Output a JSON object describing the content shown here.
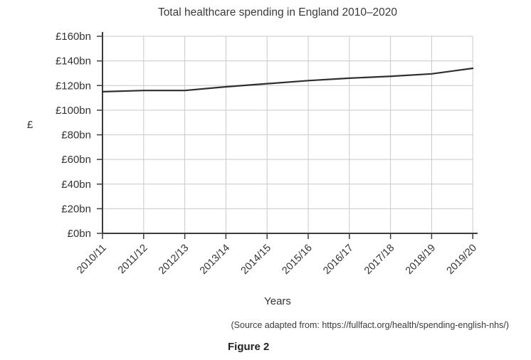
{
  "figure": {
    "title": "Total healthcare spending in England 2010–2020",
    "xlabel": "Years",
    "ylabel": "£",
    "source": "(Source adapted from: https://fullfact.org/health/spending-english-nhs/)",
    "caption": "Figure 2"
  },
  "chart_data": {
    "type": "line",
    "title": "Total healthcare spending in England 2010–2020",
    "xlabel": "Years",
    "ylabel": "£",
    "categories": [
      "2010/11",
      "2011/12",
      "2012/13",
      "2013/14",
      "2014/15",
      "2015/16",
      "2016/17",
      "2017/18",
      "2018/19",
      "2019/20"
    ],
    "series": [
      {
        "name": "Total healthcare spending",
        "values": [
          115,
          116,
          116,
          119,
          121.5,
          124,
          126,
          127.5,
          129.5,
          134
        ]
      }
    ],
    "ylim": [
      0,
      160
    ],
    "ytick_step": 20,
    "ytick_label_format": "£{v}bn",
    "grid": true,
    "legend": "none",
    "line_color": "#2f2f2f",
    "grid_color": "#c9c9c9",
    "axis_color": "#3d3d3d",
    "text_color": "#333333"
  }
}
